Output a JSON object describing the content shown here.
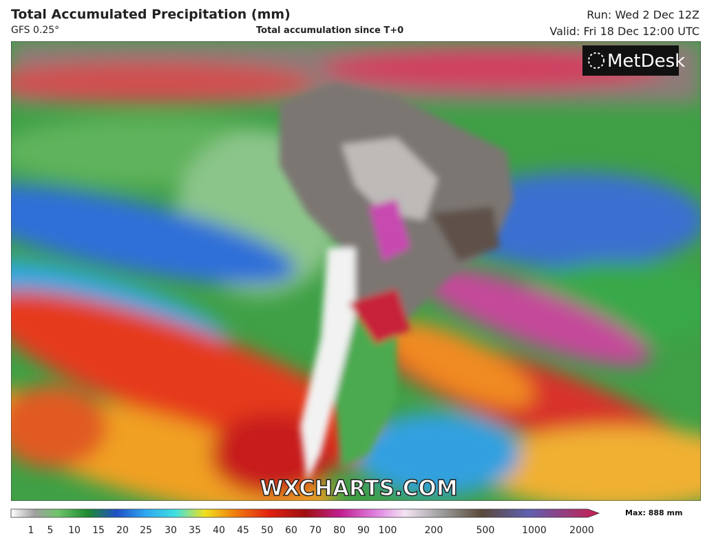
{
  "header": {
    "title": "Total Accumulated Precipitation (mm)",
    "model": "GFS 0.25°",
    "subtitle": "Total accumulation since T+0",
    "run": "Run: Wed 2 Dec 12Z",
    "valid": "Valid: Fri 18 Dec 12:00 UTC"
  },
  "map": {
    "logo": "MetDesk",
    "watermark": "WXCHARTS.COM"
  },
  "legend": {
    "max": "Max: 888 mm",
    "ticks": [
      1,
      5,
      10,
      15,
      20,
      25,
      30,
      35,
      40,
      45,
      50,
      60,
      70,
      80,
      90,
      100,
      200,
      500,
      1000,
      2000
    ]
  }
}
